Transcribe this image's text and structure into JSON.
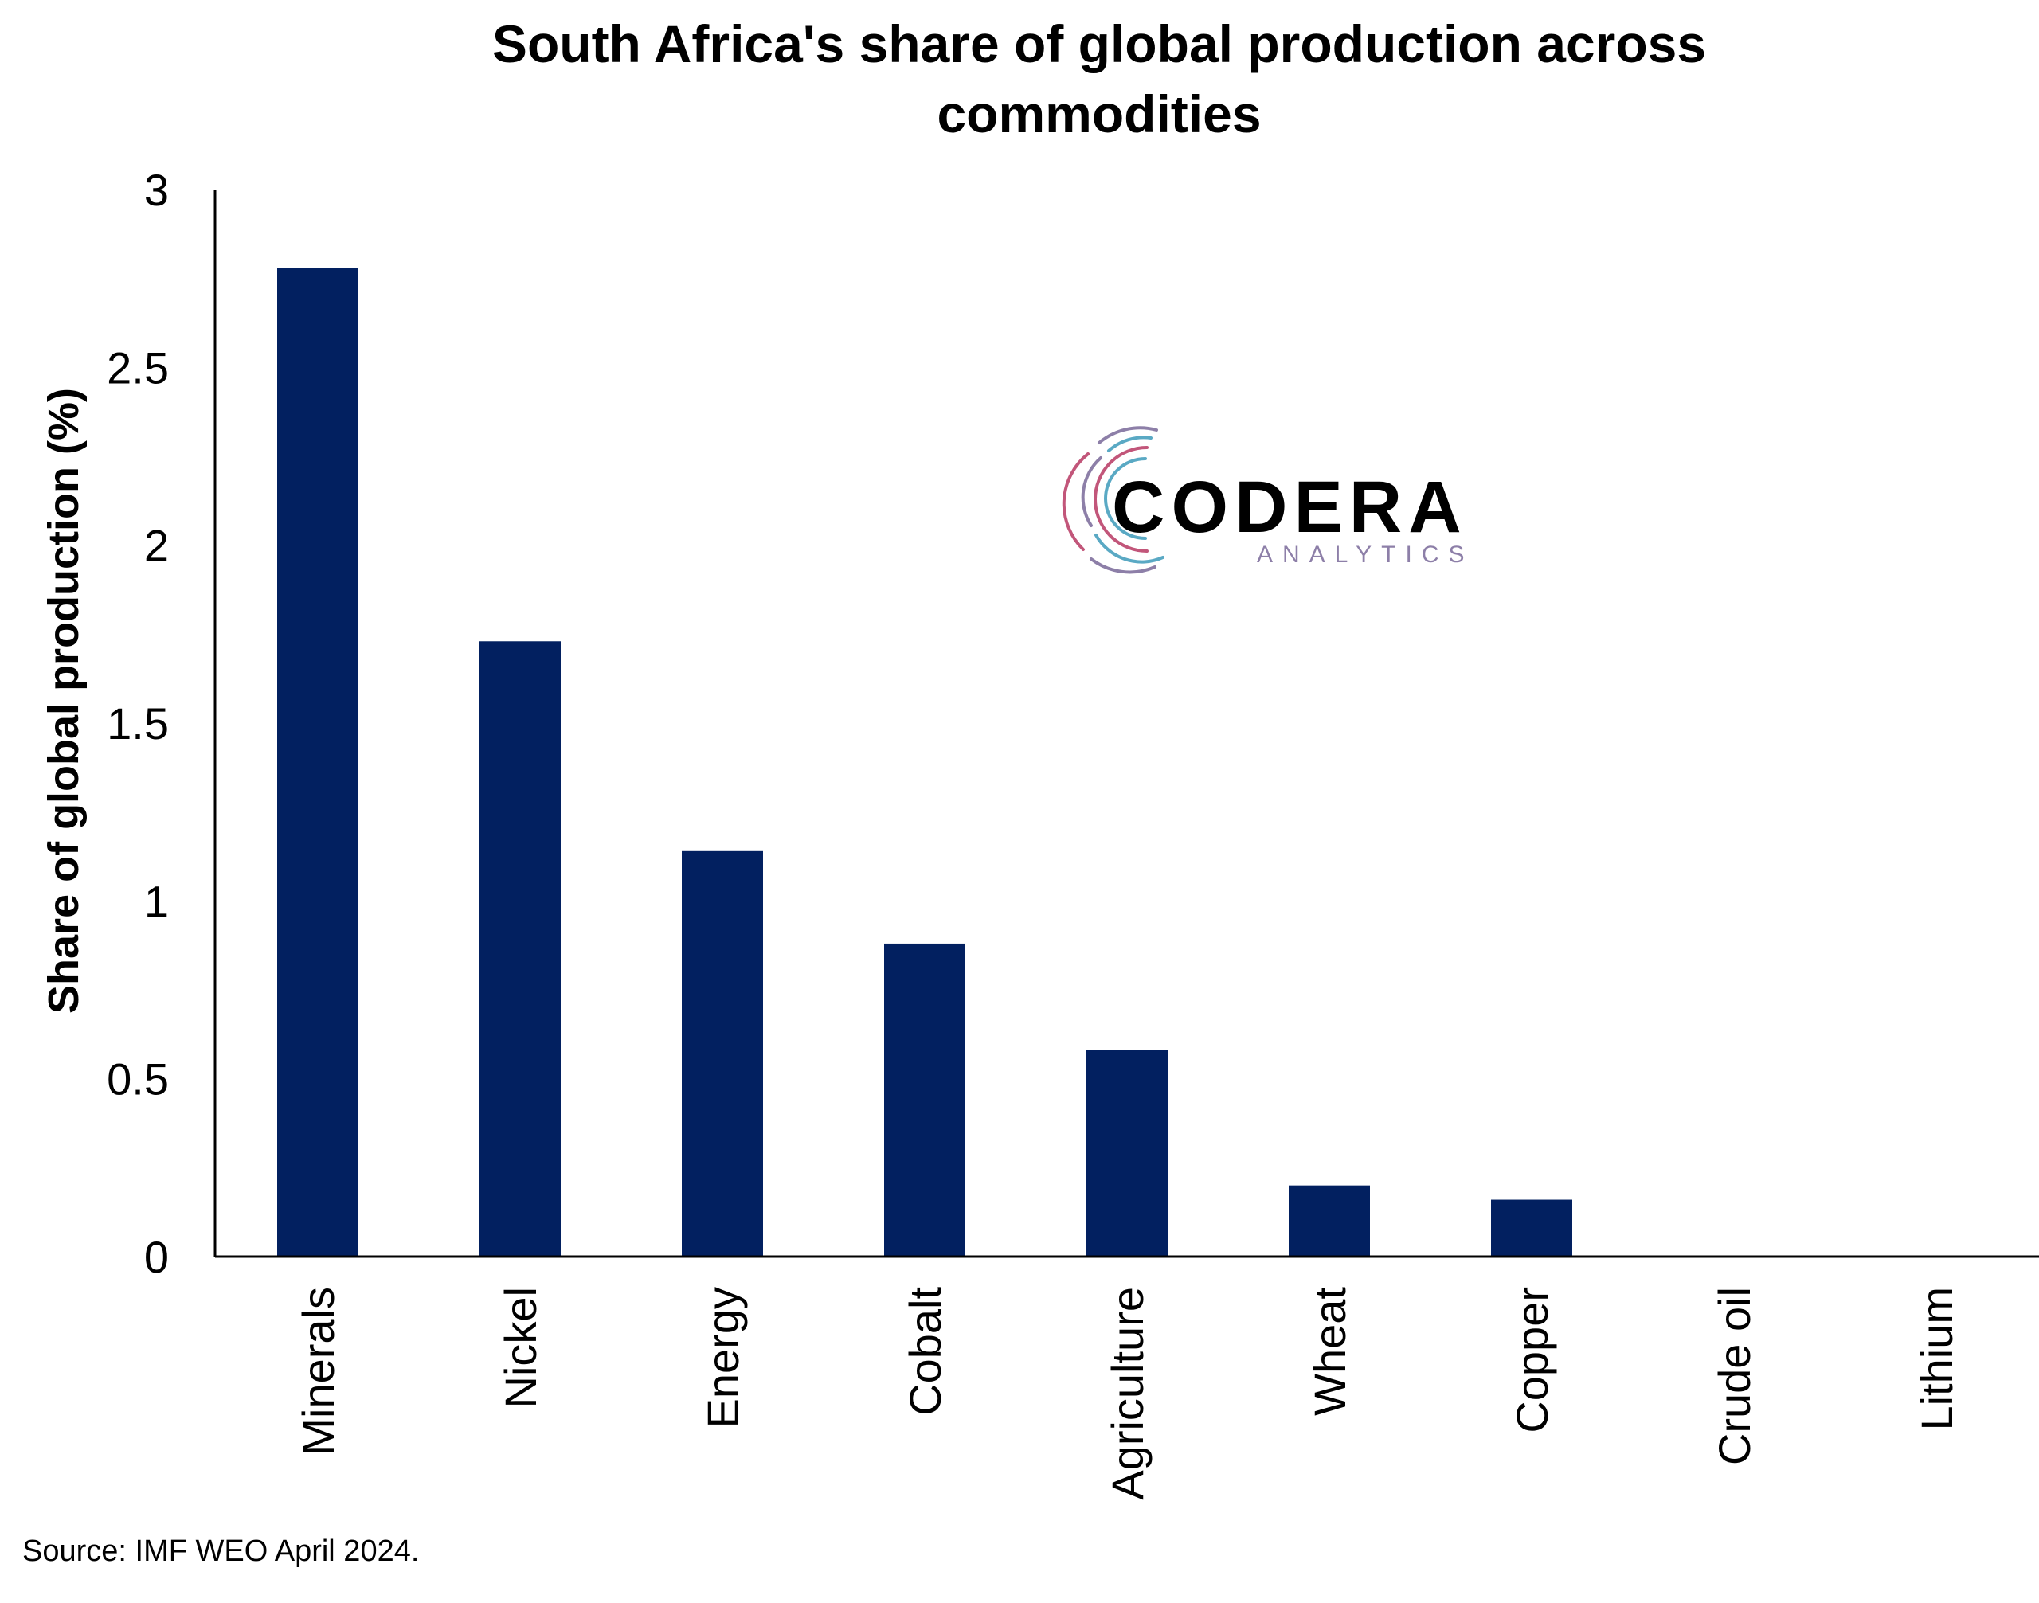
{
  "chart_data": {
    "type": "bar",
    "title_lines": [
      "South Africa's share of global production across",
      "commodities"
    ],
    "ylabel": "Share of global production (%)",
    "xlabel": "",
    "categories": [
      "Minerals",
      "Nickel",
      "Energy",
      "Cobalt",
      "Agriculture",
      "Wheat",
      "Copper",
      "Crude oil",
      "Lithium"
    ],
    "values": [
      2.78,
      1.73,
      1.14,
      0.88,
      0.58,
      0.2,
      0.16,
      0,
      0
    ],
    "ylim": [
      0,
      3
    ],
    "yticks": [
      0,
      0.5,
      1,
      1.5,
      2,
      2.5,
      3
    ],
    "ytick_labels": [
      "0",
      "0.5",
      "1",
      "1.5",
      "2",
      "2.5",
      "3"
    ],
    "grid": false,
    "legend": "none",
    "bar_color": "#022060"
  },
  "logo": {
    "word": "CODERA",
    "sub": "ANALYTICS",
    "sub_colors": [
      "#c2567a",
      "#8d7fa8",
      "#5aa9c4"
    ]
  },
  "source": "Source: IMF WEO April 2024."
}
